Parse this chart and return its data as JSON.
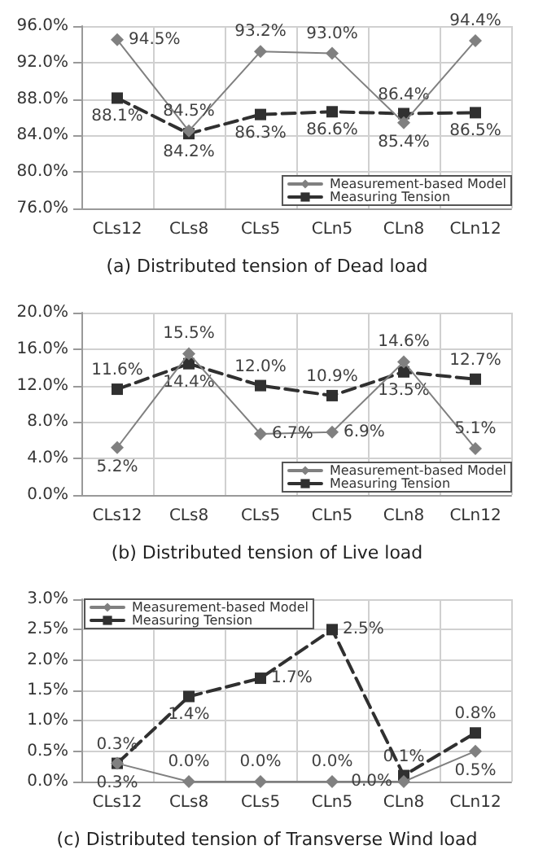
{
  "chart_data": [
    {
      "type": "line",
      "title": "(a) Distributed tension of Dead load",
      "categories": [
        "CLs12",
        "CLs8",
        "CLs5",
        "CLn5",
        "CLn8",
        "CLn12"
      ],
      "ylim": [
        76,
        96
      ],
      "yticks": [
        {
          "value": 76,
          "label": "76.0%"
        },
        {
          "value": 80,
          "label": "80.0%"
        },
        {
          "value": 84,
          "label": "84.0%"
        },
        {
          "value": 88,
          "label": "88.0%"
        },
        {
          "value": 92,
          "label": "92.0%"
        },
        {
          "value": 96,
          "label": "96.0%"
        }
      ],
      "grid": true,
      "legend": "bottom right",
      "series": [
        {
          "name": "Measurement-based Model",
          "color": "#808080",
          "marker": "diamond",
          "line_style": "solid",
          "values": [
            94.5,
            84.5,
            93.2,
            93.0,
            85.4,
            94.4
          ],
          "value_labels": [
            "94.5%",
            "84.5%",
            "93.2%",
            "93.0%",
            "85.4%",
            "94.4%"
          ]
        },
        {
          "name": "Measuring Tension",
          "color": "#303030",
          "marker": "square",
          "line_style": "dashed",
          "values": [
            88.1,
            84.2,
            86.3,
            86.6,
            86.4,
            86.5
          ],
          "value_labels": [
            "88.1%",
            "84.2%",
            "86.3%",
            "86.6%",
            "86.4%",
            "86.5%"
          ]
        }
      ]
    },
    {
      "type": "line",
      "title": "(b) Distributed tension of Live load",
      "categories": [
        "CLs12",
        "CLs8",
        "CLs5",
        "CLn5",
        "CLn8",
        "CLn12"
      ],
      "ylim": [
        0,
        20
      ],
      "yticks": [
        {
          "value": 0,
          "label": "0.0%"
        },
        {
          "value": 4,
          "label": "4.0%"
        },
        {
          "value": 8,
          "label": "8.0%"
        },
        {
          "value": 12,
          "label": "12.0%"
        },
        {
          "value": 16,
          "label": "16.0%"
        },
        {
          "value": 20,
          "label": "20.0%"
        }
      ],
      "grid": true,
      "legend": "bottom right",
      "series": [
        {
          "name": "Measurement-based Model",
          "color": "#808080",
          "marker": "diamond",
          "line_style": "solid",
          "values": [
            5.2,
            15.5,
            6.7,
            6.9,
            14.6,
            5.1
          ],
          "value_labels": [
            "5.2%",
            "15.5%",
            "6.7%",
            "6.9%",
            "14.6%",
            "5.1%"
          ]
        },
        {
          "name": "Measuring Tension",
          "color": "#303030",
          "marker": "square",
          "line_style": "dashed",
          "values": [
            11.6,
            14.4,
            12.0,
            10.9,
            13.5,
            12.7
          ],
          "value_labels": [
            "11.6%",
            "14.4%",
            "12.0%",
            "10.9%",
            "13.5%",
            "12.7%"
          ]
        }
      ]
    },
    {
      "type": "line",
      "title": "(c) Distributed tension of Transverse Wind load",
      "categories": [
        "CLs12",
        "CLs8",
        "CLs5",
        "CLn5",
        "CLn8",
        "CLn12"
      ],
      "ylim": [
        0,
        3
      ],
      "yticks": [
        {
          "value": 0,
          "label": "0.0%"
        },
        {
          "value": 0.5,
          "label": "0.5%"
        },
        {
          "value": 1,
          "label": "1.0%"
        },
        {
          "value": 1.5,
          "label": "1.5%"
        },
        {
          "value": 2,
          "label": "2.0%"
        },
        {
          "value": 2.5,
          "label": "2.5%"
        },
        {
          "value": 3,
          "label": "3.0%"
        }
      ],
      "grid": true,
      "legend": "top left",
      "series": [
        {
          "name": "Measurement-based Model",
          "color": "#808080",
          "marker": "diamond",
          "line_style": "solid",
          "values": [
            0.3,
            0.0,
            0.0,
            0.0,
            0.0,
            0.5
          ],
          "value_labels": [
            "0.3%",
            "0.0%",
            "0.0%",
            "0.0%",
            "0.0%",
            "0.5%"
          ]
        },
        {
          "name": "Measuring Tension",
          "color": "#303030",
          "marker": "square",
          "line_style": "dashed",
          "values": [
            0.3,
            1.4,
            1.7,
            2.5,
            0.1,
            0.8
          ],
          "value_labels": [
            "0.3%",
            "1.4%",
            "1.7%",
            "2.5%",
            "0.1%",
            "0.8%"
          ]
        }
      ]
    }
  ]
}
